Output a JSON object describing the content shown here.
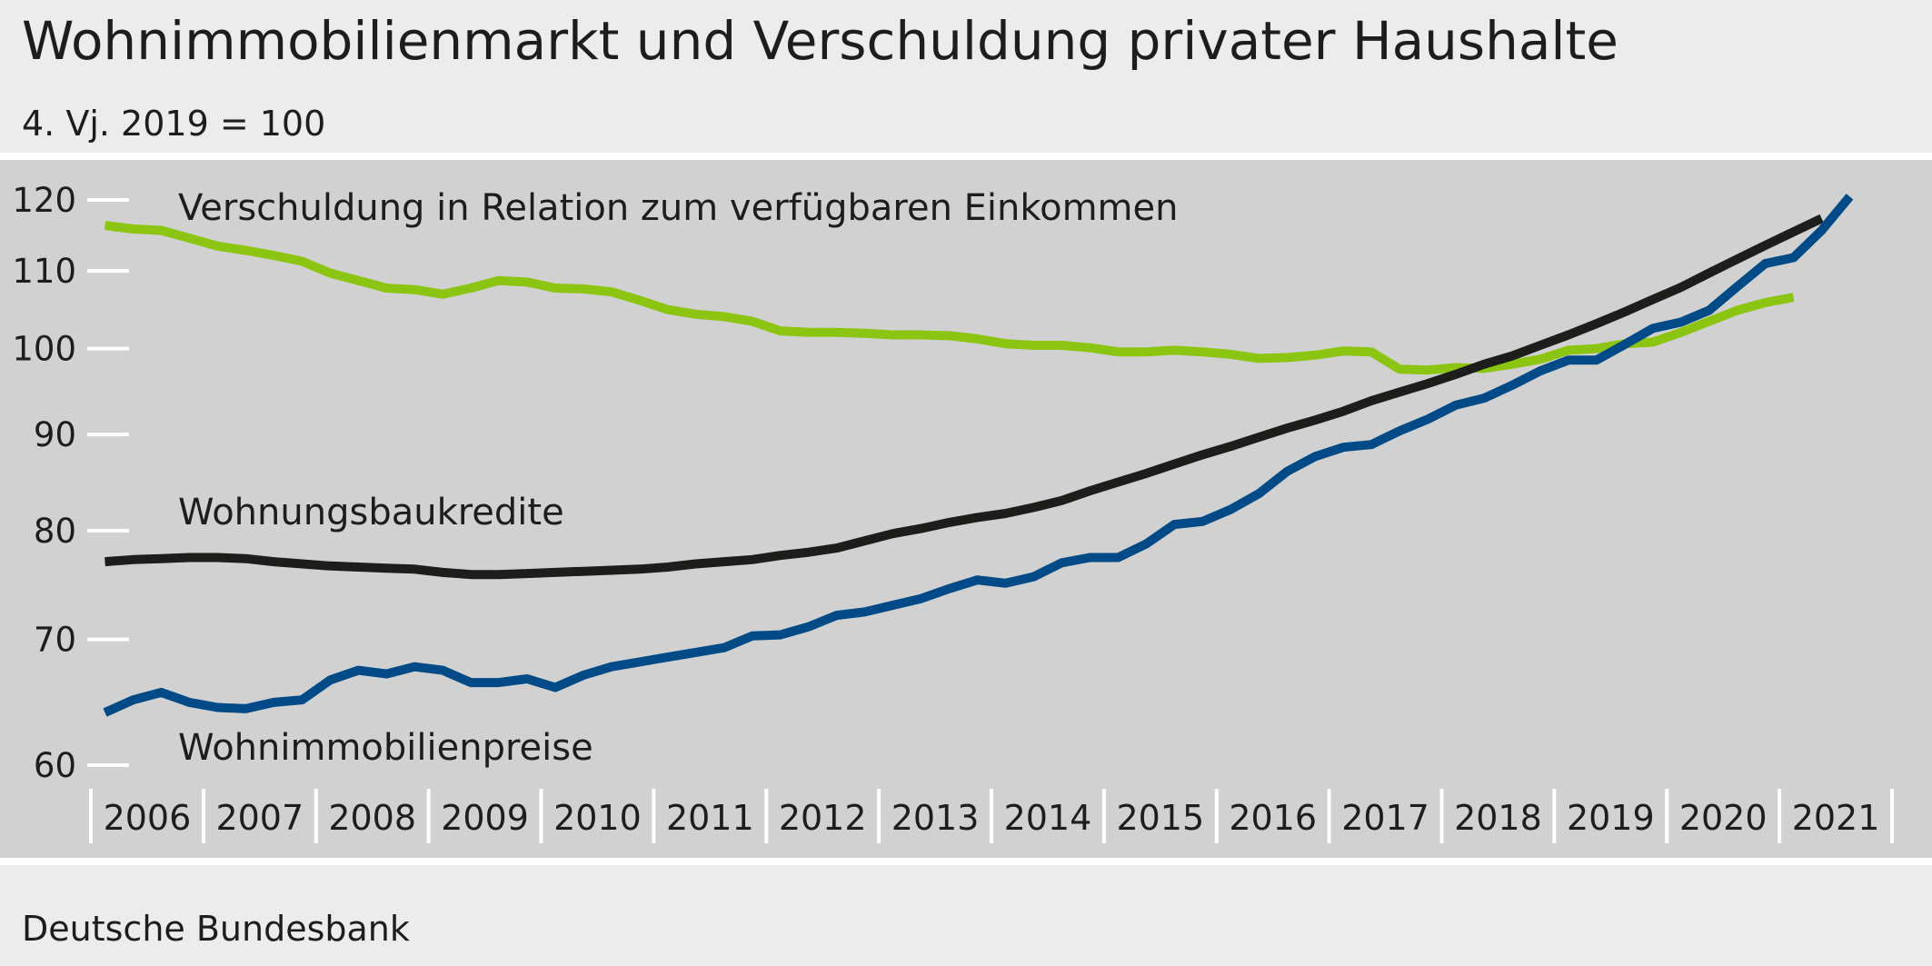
{
  "header": {
    "title": "Wohnimmobilienmarkt und Verschuldung privater Haushalte",
    "subtitle": "4. Vj. 2019 = 100"
  },
  "footer": {
    "source": "Deutsche Bundesbank"
  },
  "chart_data": {
    "type": "line",
    "y_scale": "log",
    "ylim": [
      59,
      123
    ],
    "y_ticks": [
      60,
      70,
      80,
      90,
      100,
      110,
      120
    ],
    "x_range": [
      "2006 Q1",
      "2021 Q4"
    ],
    "x_ticks": [
      "2006",
      "2007",
      "2008",
      "2009",
      "2010",
      "2011",
      "2012",
      "2013",
      "2014",
      "2015",
      "2016",
      "2017",
      "2018",
      "2019",
      "2020",
      "2021"
    ],
    "grid": false,
    "legend": "inline labels",
    "series": [
      {
        "name": "Verschuldung in Relation zum verfügbaren Einkommen",
        "color": "#8cc511",
        "start": "2006 Q1",
        "values": [
          116.3,
          115.8,
          115.6,
          114.5,
          113.4,
          112.8,
          112.1,
          111.3,
          109.7,
          108.7,
          107.7,
          107.5,
          106.9,
          107.7,
          108.7,
          108.5,
          107.7,
          107.6,
          107.2,
          106.1,
          104.9,
          104.3,
          104.0,
          103.4,
          102.2,
          102.0,
          102.0,
          101.9,
          101.7,
          101.7,
          101.6,
          101.2,
          100.6,
          100.4,
          100.4,
          100.1,
          99.6,
          99.6,
          99.8,
          99.6,
          99.3,
          98.8,
          98.9,
          99.2,
          99.7,
          99.6,
          97.5,
          97.4,
          97.7,
          97.6,
          98.1,
          98.7,
          99.8,
          100.0,
          100.6,
          100.8,
          102.0,
          103.4,
          104.8,
          105.8,
          106.5
        ]
      },
      {
        "name": "Wohnungsbaukredite",
        "color": "#1d1d1b",
        "start": "2006 Q1",
        "values": [
          77.0,
          77.2,
          77.3,
          77.4,
          77.4,
          77.3,
          77.0,
          76.8,
          76.6,
          76.5,
          76.4,
          76.3,
          76.0,
          75.8,
          75.8,
          75.9,
          76.0,
          76.1,
          76.2,
          76.3,
          76.5,
          76.8,
          77.0,
          77.2,
          77.6,
          77.9,
          78.3,
          79.0,
          79.7,
          80.2,
          80.8,
          81.3,
          81.7,
          82.3,
          83.0,
          84.0,
          84.9,
          85.8,
          86.8,
          87.8,
          88.7,
          89.7,
          90.7,
          91.6,
          92.6,
          93.8,
          94.8,
          95.8,
          96.9,
          98.1,
          99.1,
          100.4,
          101.7,
          103.1,
          104.6,
          106.2,
          107.8,
          109.7,
          111.6,
          113.5,
          115.4,
          117.3
        ]
      },
      {
        "name": "Wohnimmobilienpreise",
        "color": "#004b87",
        "start": "2006 Q1",
        "values": [
          64.0,
          65.0,
          65.6,
          64.8,
          64.4,
          64.3,
          64.8,
          65.0,
          66.6,
          67.4,
          67.1,
          67.7,
          67.4,
          66.4,
          66.4,
          66.7,
          66.0,
          67.0,
          67.7,
          68.1,
          68.5,
          68.9,
          69.3,
          70.3,
          70.4,
          71.1,
          72.1,
          72.4,
          73.0,
          73.6,
          74.5,
          75.3,
          75.0,
          75.6,
          76.9,
          77.4,
          77.4,
          78.7,
          80.6,
          80.9,
          82.1,
          83.7,
          86.0,
          87.6,
          88.6,
          88.9,
          90.4,
          91.7,
          93.3,
          94.1,
          95.6,
          97.3,
          98.6,
          98.6,
          100.5,
          102.5,
          103.3,
          104.8,
          107.9,
          111.0,
          111.8,
          115.6,
          120.5
        ]
      }
    ]
  }
}
